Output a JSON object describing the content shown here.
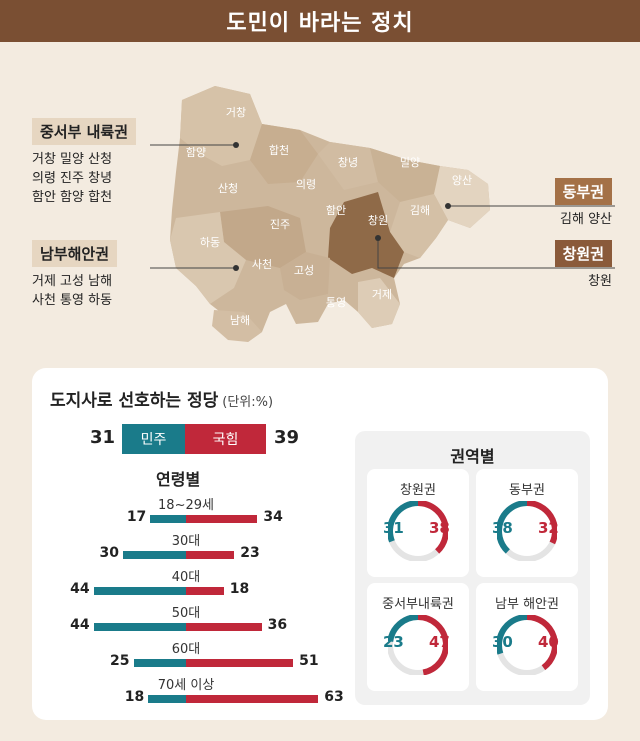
{
  "banner": {
    "title": "도민이 바라는 정치"
  },
  "map": {
    "county_labels": [
      "거창",
      "함양",
      "합천",
      "산청",
      "창녕",
      "밀양",
      "의령",
      "양산",
      "김해",
      "함안",
      "창원",
      "진주",
      "하동",
      "사천",
      "고성",
      "거제",
      "통영",
      "남해"
    ],
    "regions": [
      {
        "title": "중서부 내륙권",
        "lines": [
          "거창 밀양 산청",
          "의령 진주 창녕",
          "함안 함양 합천"
        ]
      },
      {
        "title": "남부해안권",
        "lines": [
          "거제 고성 남해",
          "사천 통영 하동"
        ]
      },
      {
        "title": "동부권",
        "lines": [
          "김해 양산"
        ]
      },
      {
        "title": "창원권",
        "lines": [
          "창원"
        ]
      }
    ]
  },
  "panel": {
    "title": "도지사로 선호하는 정당",
    "unit": "(단위:%)",
    "overall": {
      "dem_label": "민주",
      "ppp_label": "국힘",
      "dem": 31,
      "ppp": 39
    },
    "age_title": "연령별",
    "region_title": "권역별"
  },
  "colors": {
    "dem": "#1a7b8a",
    "ppp": "#c0283a",
    "banner": "#7a4f33"
  },
  "chart_data": [
    {
      "type": "bar",
      "title": "연령별",
      "categories": [
        "18~29세",
        "30대",
        "40대",
        "50대",
        "60대",
        "70세 이상"
      ],
      "series": [
        {
          "name": "민주",
          "values": [
            17,
            30,
            44,
            44,
            25,
            18
          ]
        },
        {
          "name": "국힘",
          "values": [
            34,
            23,
            18,
            36,
            51,
            63
          ]
        }
      ]
    },
    {
      "type": "pie",
      "title": "권역별",
      "categories": [
        "창원권",
        "동부권",
        "중서부내륙권",
        "남부 해안권"
      ],
      "series": [
        {
          "name": "민주",
          "values": [
            31,
            38,
            23,
            30
          ]
        },
        {
          "name": "국힘",
          "values": [
            38,
            32,
            47,
            40
          ]
        }
      ]
    }
  ]
}
